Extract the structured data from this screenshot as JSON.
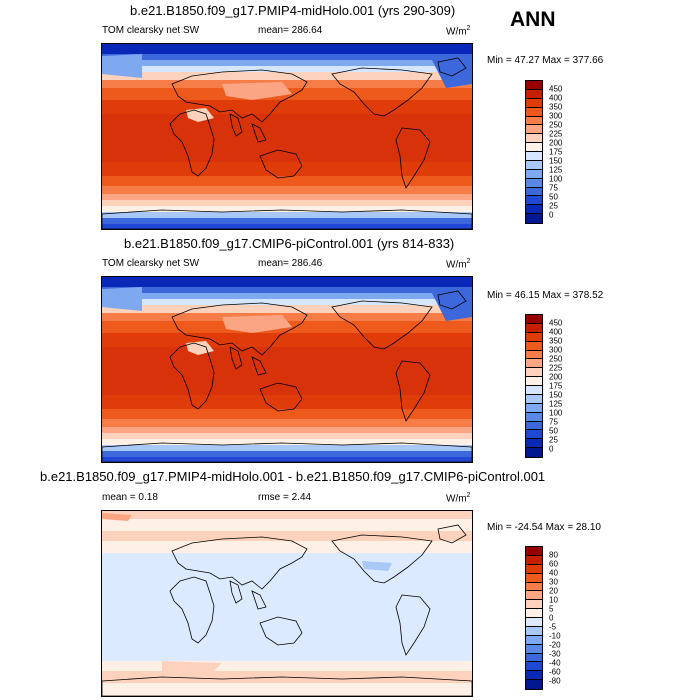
{
  "season": "ANN",
  "panels": [
    {
      "title": "b.e21.B1850.f09_g17.PMIP4-midHolo.001 (yrs 290-309)",
      "variable": "TOM clearsky net SW",
      "mean_text": "mean= 286.64",
      "rmse_text": "",
      "units": "W/m",
      "units_exp": "2",
      "minmax": "Min =  47.27 Max = 377.66",
      "field": "absolute",
      "colorbar": {
        "levels": [
          "450",
          "400",
          "350",
          "300",
          "250",
          "225",
          "200",
          "175",
          "150",
          "125",
          "100",
          "75",
          "50",
          "25",
          "0"
        ],
        "colors": [
          "#9a0000",
          "#c81e00",
          "#e03c0a",
          "#ee5a1c",
          "#f67d48",
          "#fba585",
          "#fdd2bd",
          "#fff0e6",
          "#d6e6ff",
          "#a9c8f8",
          "#7ea8f0",
          "#5a88e6",
          "#3c68dc",
          "#2048d4",
          "#0a28b8",
          "#001890"
        ]
      }
    },
    {
      "title": "b.e21.B1850.f09_g17.CMIP6-piControl.001 (yrs 814-833)",
      "variable": "TOM clearsky net SW",
      "mean_text": "mean= 286.46",
      "rmse_text": "",
      "units": "W/m",
      "units_exp": "2",
      "minmax": "Min =  46.15 Max = 378.52",
      "field": "absolute",
      "colorbar": {
        "levels": [
          "450",
          "400",
          "350",
          "300",
          "250",
          "225",
          "200",
          "175",
          "150",
          "125",
          "100",
          "75",
          "50",
          "25",
          "0"
        ],
        "colors": [
          "#9a0000",
          "#c81e00",
          "#e03c0a",
          "#ee5a1c",
          "#f67d48",
          "#fba585",
          "#fdd2bd",
          "#fff0e6",
          "#d6e6ff",
          "#a9c8f8",
          "#7ea8f0",
          "#5a88e6",
          "#3c68dc",
          "#2048d4",
          "#0a28b8",
          "#001890"
        ]
      }
    },
    {
      "title": "b.e21.B1850.f09_g17.PMIP4-midHolo.001 - b.e21.B1850.f09_g17.CMIP6-piControl.001",
      "variable": "mean =   0.18",
      "mean_text": "rmse =   2.44",
      "rmse_text": "",
      "units": "W/m",
      "units_exp": "2",
      "minmax": "Min = -24.54 Max =  28.10",
      "field": "difference",
      "colorbar": {
        "levels": [
          "80",
          "60",
          "40",
          "30",
          "20",
          "10",
          "5",
          "0",
          "-5",
          "-10",
          "-20",
          "-30",
          "-40",
          "-60",
          "-80"
        ],
        "colors": [
          "#9a0000",
          "#c81e00",
          "#e03c0a",
          "#ee5a1c",
          "#f67d48",
          "#fba585",
          "#fdd2bd",
          "#fff0e6",
          "#dceaff",
          "#a9c8f8",
          "#7ea8f0",
          "#5a88e6",
          "#3c68dc",
          "#2048d4",
          "#0a28b8",
          "#001890"
        ]
      }
    }
  ]
}
